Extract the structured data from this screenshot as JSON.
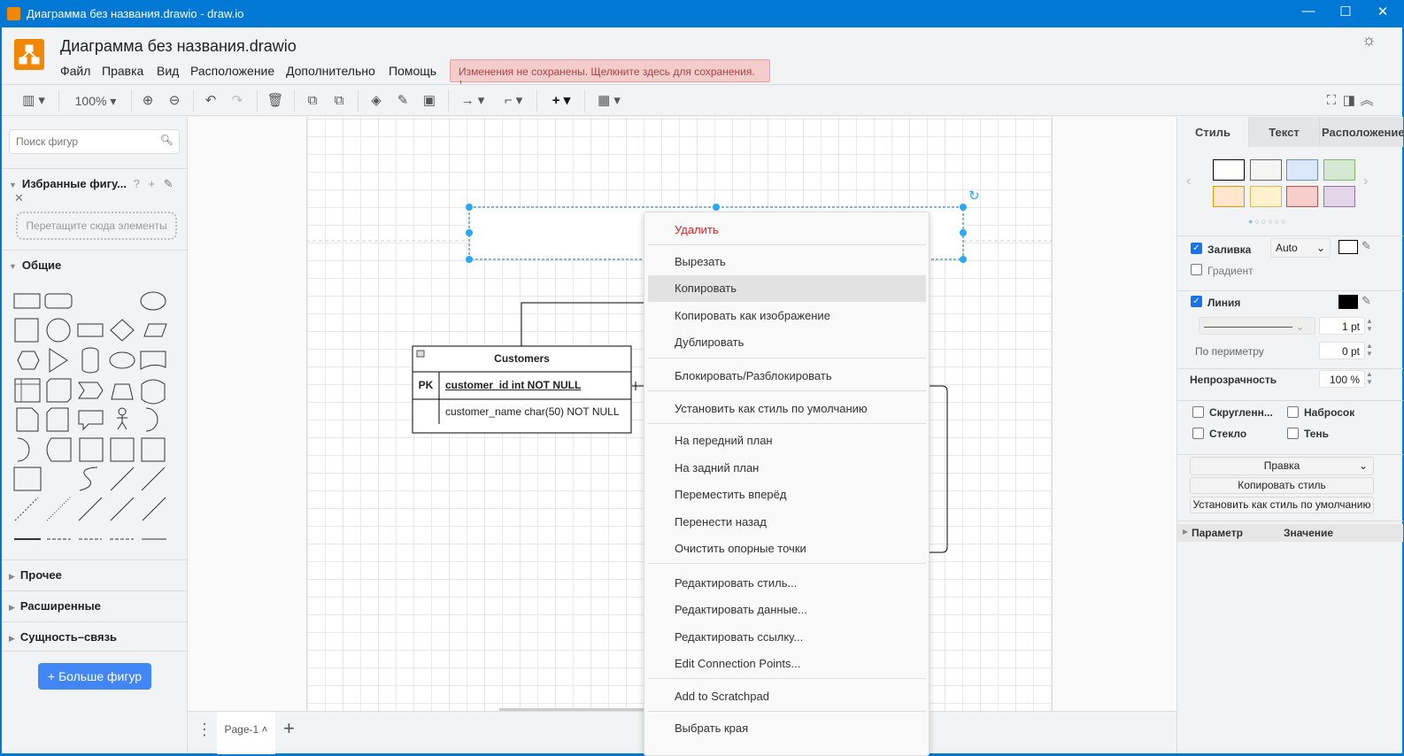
{
  "window": {
    "title": "Диаграмма без названия.drawio - draw.io",
    "minimize": "—",
    "maximize": "☐",
    "close": "✕"
  },
  "header": {
    "doc_title": "Диаграмма без названия.drawio",
    "menus": [
      "Файл",
      "Правка",
      "Вид",
      "Расположение",
      "Дополнительно",
      "Помощь"
    ],
    "unsaved": "Изменения не сохранены. Щелкните здесь для сохранения.",
    "theme_icon": "☼"
  },
  "toolbar": {
    "zoom": "100%"
  },
  "sidebar": {
    "search_placeholder": "Поиск фигур",
    "favorites": "Избранные фигу...",
    "favorites_help": "?",
    "dropzone": "Перетащите сюда элементы",
    "general": "Общие",
    "sections": [
      "Прочее",
      "Расширенные",
      "Сущность–связь"
    ],
    "more_shapes": "+ Больше фигур"
  },
  "diagram": {
    "table_title": "Customers",
    "pk": "PK",
    "field1": "customer_id int NOT NULL",
    "field2": "customer_name char(50) NOT NULL"
  },
  "context_menu": {
    "items": [
      "Удалить",
      "Вырезать",
      "Копировать",
      "Копировать как изображение",
      "Дублировать",
      "Блокировать/Разблокировать",
      "Установить как стиль по умолчанию",
      "На передний план",
      "На задний план",
      "Переместить вперёд",
      "Перенести назад",
      "Очистить опорные точки",
      "Редактировать стиль...",
      "Редактировать данные...",
      "Редактировать ссылку...",
      "Edit Connection Points...",
      "Add to Scratchpad",
      "Выбрать края"
    ],
    "highlighted": "Копировать",
    "danger_color": "#e02020"
  },
  "pages": {
    "tab": "Page-1",
    "add": "+"
  },
  "format": {
    "tabs": [
      "Стиль",
      "Текст",
      "Расположение"
    ],
    "swatches": [
      {
        "fill": "#ffffff",
        "stroke": "#000000"
      },
      {
        "fill": "#f5f5f5",
        "stroke": "#666666"
      },
      {
        "fill": "#dae8fc",
        "stroke": "#6c8ebf"
      },
      {
        "fill": "#d5e8d4",
        "stroke": "#82b366"
      },
      {
        "fill": "#ffe6cc",
        "stroke": "#d79b00"
      },
      {
        "fill": "#fff2cc",
        "stroke": "#d6b656"
      },
      {
        "fill": "#f8cecc",
        "stroke": "#b85450"
      },
      {
        "fill": "#e1d5e7",
        "stroke": "#9673a6"
      }
    ],
    "fill_label": "Заливка",
    "fill_mode": "Auto",
    "gradient": "Градиент",
    "line_label": "Линия",
    "line_width": "1 pt",
    "perimeter_label": "По периметру",
    "perimeter": "0 pt",
    "opacity_label": "Непрозрачность",
    "opacity": "100 %",
    "rounded": "Скругленн...",
    "sketch": "Набросок",
    "glass": "Стекло",
    "shadow": "Тень",
    "edit_select": "Правка",
    "copy_style": "Копировать стиль",
    "set_default": "Установить как стиль по умолчанию",
    "param_col": "Параметр",
    "value_col": "Значение"
  }
}
